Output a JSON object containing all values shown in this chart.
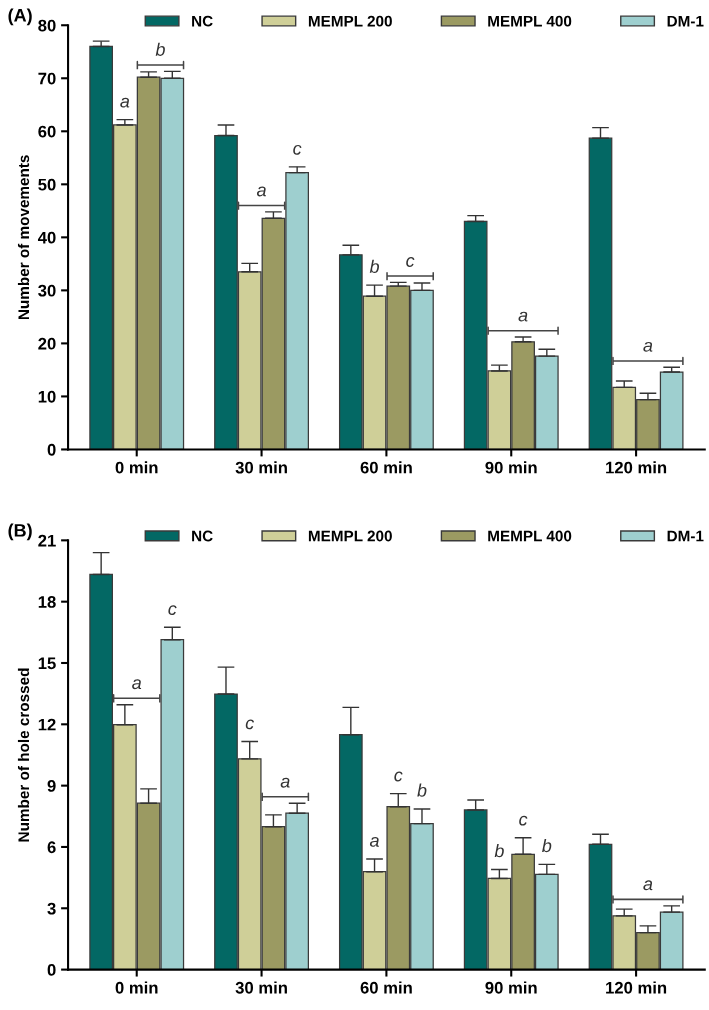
{
  "chart_data": [
    {
      "type": "bar",
      "title": "(A)",
      "ylabel": "Number of movements",
      "categories": [
        "0 min",
        "30 min",
        "60 min",
        "90 min",
        "120 min"
      ],
      "series": [
        {
          "name": "NC",
          "color": "#036864",
          "values": [
            76,
            59.2,
            36.7,
            43,
            58.7
          ],
          "errors": [
            1.0,
            2.0,
            1.8,
            1.1,
            2.0
          ]
        },
        {
          "name": "MEMPL 200",
          "color": "#cfcf98",
          "values": [
            61.2,
            33.5,
            28.9,
            14.8,
            11.7
          ],
          "errors": [
            1.0,
            1.6,
            2.1,
            1.1,
            1.2
          ]
        },
        {
          "name": "MEMPL 400",
          "color": "#9b9a62",
          "values": [
            70.2,
            43.6,
            30.8,
            20.3,
            9.4
          ],
          "errors": [
            1.0,
            1.2,
            0.7,
            0.9,
            1.2
          ]
        },
        {
          "name": "DM-1",
          "color": "#9ecfcf",
          "values": [
            70,
            52.2,
            30,
            17.6,
            14.6
          ],
          "errors": [
            1.3,
            1.1,
            1.4,
            1.3,
            0.9
          ]
        }
      ],
      "ylim": [
        0,
        80
      ],
      "yticks": [
        0,
        10,
        20,
        30,
        40,
        50,
        60,
        70,
        80
      ],
      "grid": false,
      "legend": "top",
      "annotations": [
        "a",
        "b",
        "a",
        "c",
        "b",
        "c",
        "a",
        "a"
      ]
    },
    {
      "type": "bar",
      "title": "(B)",
      "ylabel": "Number of hole crossed",
      "categories": [
        "0 min",
        "30 min",
        "60 min",
        "90 min",
        "120 min"
      ],
      "series": [
        {
          "name": "NC",
          "color": "#036864",
          "values": [
            19.33,
            13.48,
            11.49,
            7.81,
            6.13
          ],
          "errors": [
            1.07,
            1.32,
            1.34,
            0.49,
            0.49
          ]
        },
        {
          "name": "MEMPL 200",
          "color": "#cfcf98",
          "values": [
            11.98,
            10.31,
            4.79,
            4.46,
            2.63
          ],
          "errors": [
            0.98,
            0.85,
            0.62,
            0.44,
            0.33
          ]
        },
        {
          "name": "MEMPL 400",
          "color": "#9b9a62",
          "values": [
            8.14,
            6.99,
            7.97,
            5.64,
            1.81
          ],
          "errors": [
            0.7,
            0.58,
            0.64,
            0.81,
            0.33
          ]
        },
        {
          "name": "DM-1",
          "color": "#9ecfcf",
          "values": [
            16.14,
            7.65,
            7.14,
            4.66,
            2.81
          ],
          "errors": [
            0.61,
            0.49,
            0.72,
            0.49,
            0.31
          ]
        }
      ],
      "ylim": [
        0,
        21
      ],
      "yticks": [
        0,
        3,
        6,
        9,
        12,
        15,
        18,
        21
      ],
      "grid": false,
      "legend": "top",
      "annotations": [
        "a",
        "c",
        "c",
        "a",
        "a",
        "c",
        "b",
        "b",
        "c",
        "b",
        "a"
      ]
    }
  ]
}
